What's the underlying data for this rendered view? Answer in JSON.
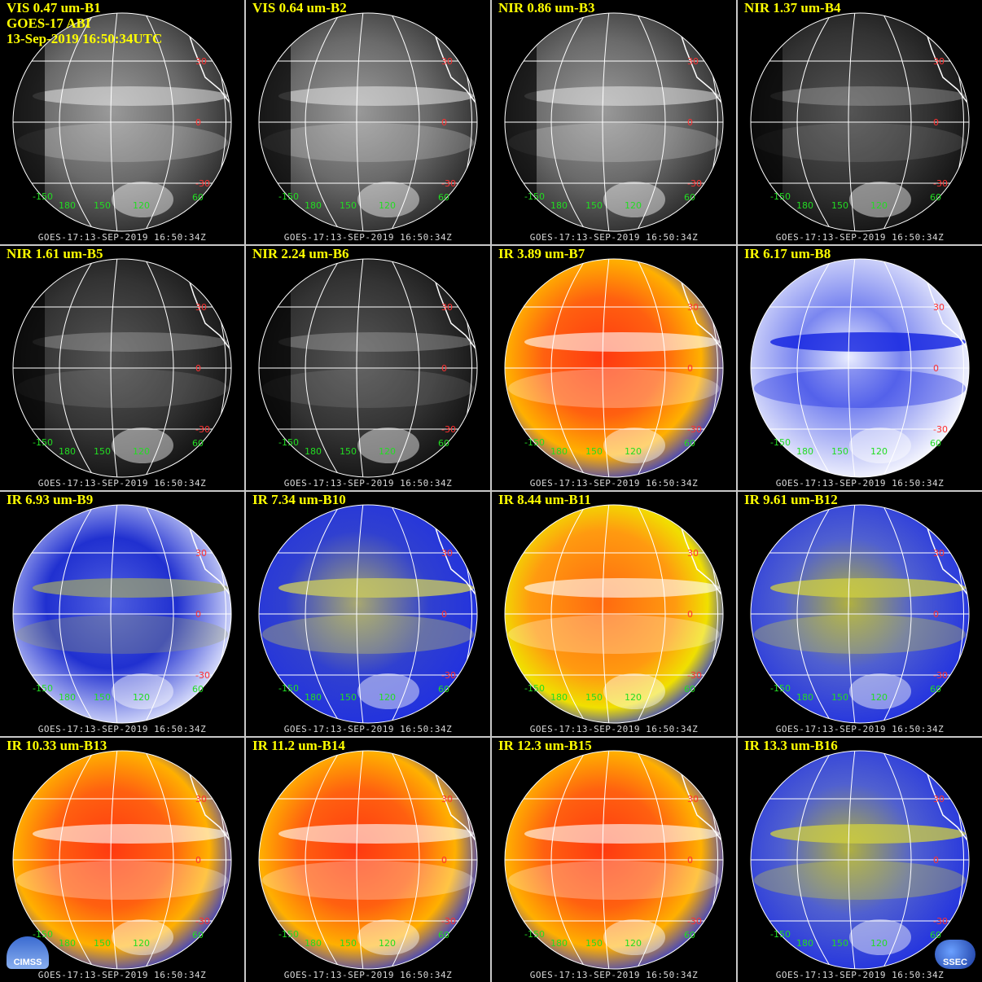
{
  "header": {
    "instrument": "GOES-17 ABI",
    "datetime": "13-Sep-2019 16:50:34UTC"
  },
  "footer_text": "GOES-17:13-SEP-2019 16:50:34Z",
  "lat_labels": [
    "30",
    "0",
    "-30"
  ],
  "lon_labels": [
    "-150",
    "180",
    "150",
    "120",
    "60"
  ],
  "logos": {
    "left": "CIMSS",
    "right": "SSEC"
  },
  "colors": {
    "title": "#ffff00",
    "lat_label": "#ff3030",
    "lon_label": "#22dd22",
    "grid": "#ffffff"
  },
  "panels": [
    {
      "label": "VIS 0.47 um-B1",
      "palette": "gray"
    },
    {
      "label": "VIS 0.64 um-B2",
      "palette": "gray"
    },
    {
      "label": "NIR 0.86 um-B3",
      "palette": "gray"
    },
    {
      "label": "NIR 1.37 um-B4",
      "palette": "darkgray"
    },
    {
      "label": "NIR 1.61 um-B5",
      "palette": "darkgray"
    },
    {
      "label": "NIR 2.24 um-B6",
      "palette": "darkgray"
    },
    {
      "label": "IR 3.89 um-B7",
      "palette": "red"
    },
    {
      "label": "IR 6.17 um-B8",
      "palette": "wv_white"
    },
    {
      "label": "IR 6.93 um-B9",
      "palette": "wv_blue"
    },
    {
      "label": "IR 7.34 um-B10",
      "palette": "wv_yellow"
    },
    {
      "label": "IR 8.44 um-B11",
      "palette": "orange"
    },
    {
      "label": "IR 9.61 um-B12",
      "palette": "yellowblue"
    },
    {
      "label": "IR 10.33 um-B13",
      "palette": "red"
    },
    {
      "label": "IR 11.2 um-B14",
      "palette": "red"
    },
    {
      "label": "IR 12.3 um-B15",
      "palette": "red"
    },
    {
      "label": "IR 13.3 um-B16",
      "palette": "yellowblue"
    }
  ]
}
